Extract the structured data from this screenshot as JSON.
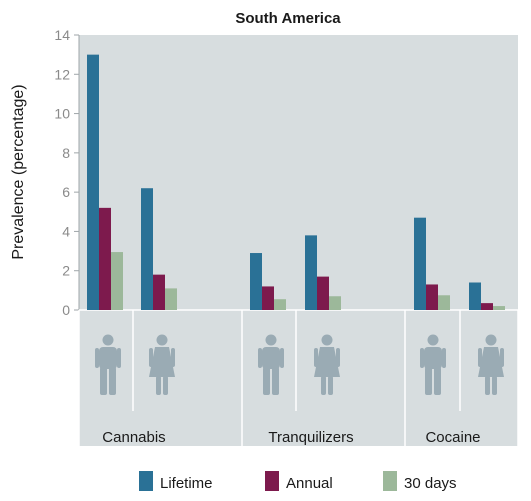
{
  "chart_data": {
    "type": "bar",
    "title": "South America",
    "ylabel": "Prevalence (percentage)",
    "xlabel": "",
    "ylim": [
      0,
      14
    ],
    "yticks": [
      0,
      2,
      4,
      6,
      8,
      10,
      12,
      14
    ],
    "grid": false,
    "legend_position": "bottom",
    "groups": [
      {
        "label": "Cannabis",
        "subgroups": [
          "male",
          "female"
        ]
      },
      {
        "label": "Tranquilizers",
        "subgroups": [
          "male",
          "female"
        ]
      },
      {
        "label": "Cocaine",
        "subgroups": [
          "male",
          "female"
        ]
      }
    ],
    "categories": [
      "Cannabis male",
      "Cannabis female",
      "Tranquilizers male",
      "Tranquilizers female",
      "Cocaine male",
      "Cocaine female"
    ],
    "series": [
      {
        "name": "Lifetime",
        "color": "#2a7196",
        "values": [
          13.0,
          6.2,
          2.9,
          3.8,
          4.7,
          1.4
        ]
      },
      {
        "name": "Annual",
        "color": "#7d1a4d",
        "values": [
          5.2,
          1.8,
          1.2,
          1.7,
          1.3,
          0.35
        ]
      },
      {
        "name": "30 days",
        "color": "#9cb89a",
        "values": [
          2.95,
          1.1,
          0.55,
          0.7,
          0.75,
          0.2
        ]
      }
    ],
    "colors": {
      "background": "#d7dddf",
      "axis": "#9fa6a9",
      "icon": "#9aabb4"
    },
    "icons": [
      "male-person-icon",
      "female-person-icon"
    ]
  }
}
